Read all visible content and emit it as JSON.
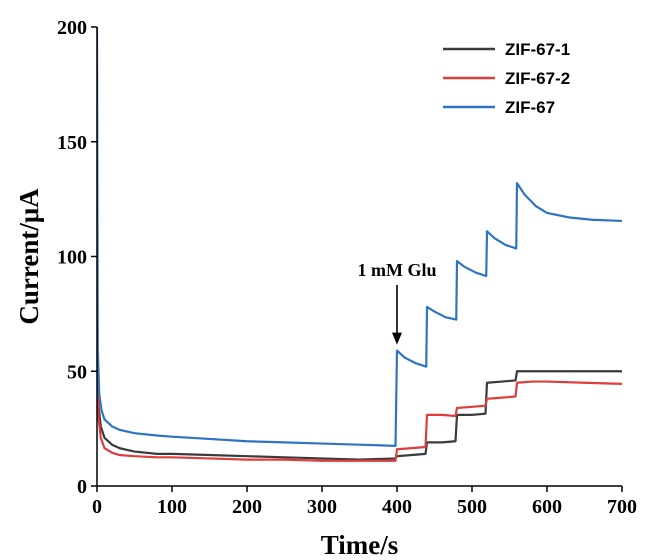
{
  "chart_data": {
    "type": "line",
    "title": "",
    "xlabel": "Time/s",
    "ylabel": "Current/μA",
    "xlim": [
      0,
      700
    ],
    "ylim": [
      0,
      200
    ],
    "xticks": [
      0,
      100,
      200,
      300,
      400,
      500,
      600,
      700
    ],
    "yticks": [
      0,
      50,
      100,
      150,
      200
    ],
    "grid": false,
    "legend_position": "top-right",
    "annotation": {
      "text": "1 mM Glu",
      "x": 400,
      "y": 59
    },
    "series": [
      {
        "name": "ZIF-67-1",
        "color": "#3a3a3a",
        "x": [
          0,
          2,
          5,
          10,
          20,
          30,
          50,
          80,
          100,
          150,
          200,
          250,
          300,
          350,
          398,
          400,
          420,
          438,
          440,
          460,
          478,
          480,
          500,
          518,
          520,
          540,
          558,
          560,
          580,
          600,
          650,
          700
        ],
        "y": [
          50,
          35,
          26,
          21,
          18,
          16.5,
          15,
          14,
          14,
          13.5,
          13,
          12.5,
          12,
          11.5,
          12,
          13,
          13.5,
          14,
          19,
          19,
          19.5,
          31,
          31,
          31.5,
          45,
          45.5,
          46,
          50,
          50,
          50,
          50,
          50
        ]
      },
      {
        "name": "ZIF-67-2",
        "color": "#e03c3c",
        "x": [
          0,
          2,
          5,
          10,
          20,
          30,
          50,
          80,
          100,
          150,
          200,
          250,
          300,
          350,
          398,
          400,
          420,
          438,
          440,
          460,
          478,
          480,
          500,
          518,
          520,
          540,
          558,
          560,
          580,
          600,
          650,
          700
        ],
        "y": [
          72,
          30,
          21,
          16.5,
          14.5,
          13.5,
          13,
          12.5,
          12.5,
          12,
          11.5,
          11.5,
          11,
          11,
          11,
          16,
          16.5,
          17,
          31,
          31,
          30.5,
          34,
          34.5,
          35,
          38,
          38.5,
          39,
          45,
          45.5,
          45.5,
          45,
          44.5
        ]
      },
      {
        "name": "ZIF-67",
        "color": "#2f74c4",
        "x": [
          0,
          1,
          3,
          6,
          10,
          20,
          30,
          50,
          80,
          100,
          150,
          200,
          250,
          300,
          350,
          398,
          400,
          410,
          425,
          439,
          440,
          450,
          465,
          479,
          480,
          490,
          505,
          519,
          520,
          530,
          545,
          559,
          560,
          570,
          585,
          600,
          630,
          660,
          700
        ],
        "y": [
          200,
          60,
          40,
          33,
          29,
          26,
          24.5,
          23,
          22,
          21.5,
          20.5,
          19.5,
          19,
          18.5,
          18,
          17.5,
          59,
          56,
          53.5,
          52,
          78,
          76,
          73.5,
          72.5,
          98,
          95.5,
          93,
          91.5,
          111,
          108,
          105,
          103.5,
          132,
          127,
          122,
          119,
          117,
          116,
          115.5
        ]
      }
    ]
  }
}
